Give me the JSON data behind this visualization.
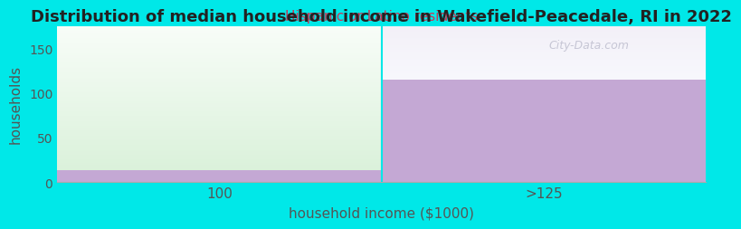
{
  "title": "Distribution of median household income in Wakefield-Peacedale, RI in 2022",
  "subtitle": "Hispanic or Latino residents",
  "xlabel": "household income ($1000)",
  "ylabel": "households",
  "categories": [
    "100",
    ">125"
  ],
  "bar_colors": [
    "#c4a8d4",
    "#c4a8d4"
  ],
  "background_color": "#00e8e8",
  "plot_bg_color": "#f8fdf8",
  "subtitle_color": "#cc3355",
  "ylim": [
    0,
    175
  ],
  "yticks": [
    0,
    50,
    100,
    150
  ],
  "watermark": "City-Data.com",
  "left_bar_height": 13,
  "right_bar_height": 115,
  "green_gradient_bottom": "#d8f0d8",
  "green_gradient_top": "#f8fdf8",
  "right_bg_top": "#f0f0f8",
  "right_bg_bottom": "#f0f0f8"
}
